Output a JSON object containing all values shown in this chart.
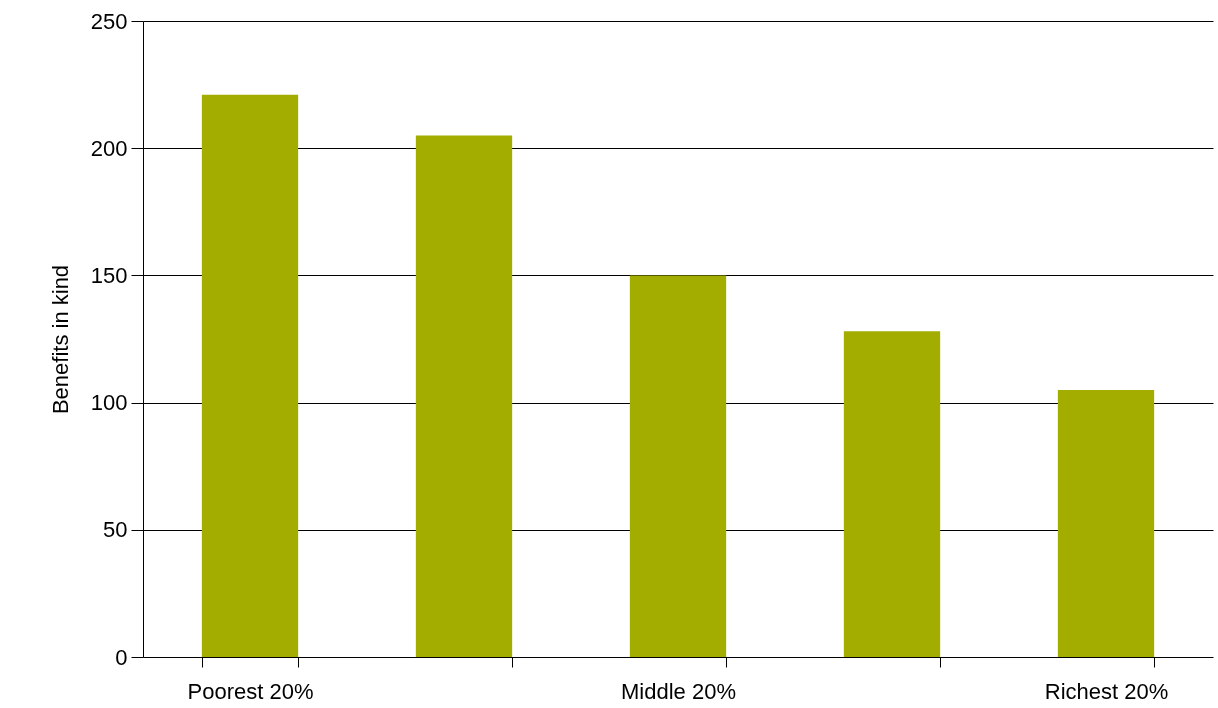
{
  "chart_data": {
    "type": "bar",
    "ylabel": "Benefits in kind",
    "categories": [
      "Poorest 20%",
      null,
      "Middle 20%",
      null,
      "Richest 20%"
    ],
    "values": [
      221,
      205,
      150,
      128,
      105
    ],
    "color": "#a2ad00",
    "ylim": [
      0,
      250
    ],
    "yticks": [
      0,
      50,
      100,
      150,
      200,
      250
    ],
    "grid": "y"
  }
}
